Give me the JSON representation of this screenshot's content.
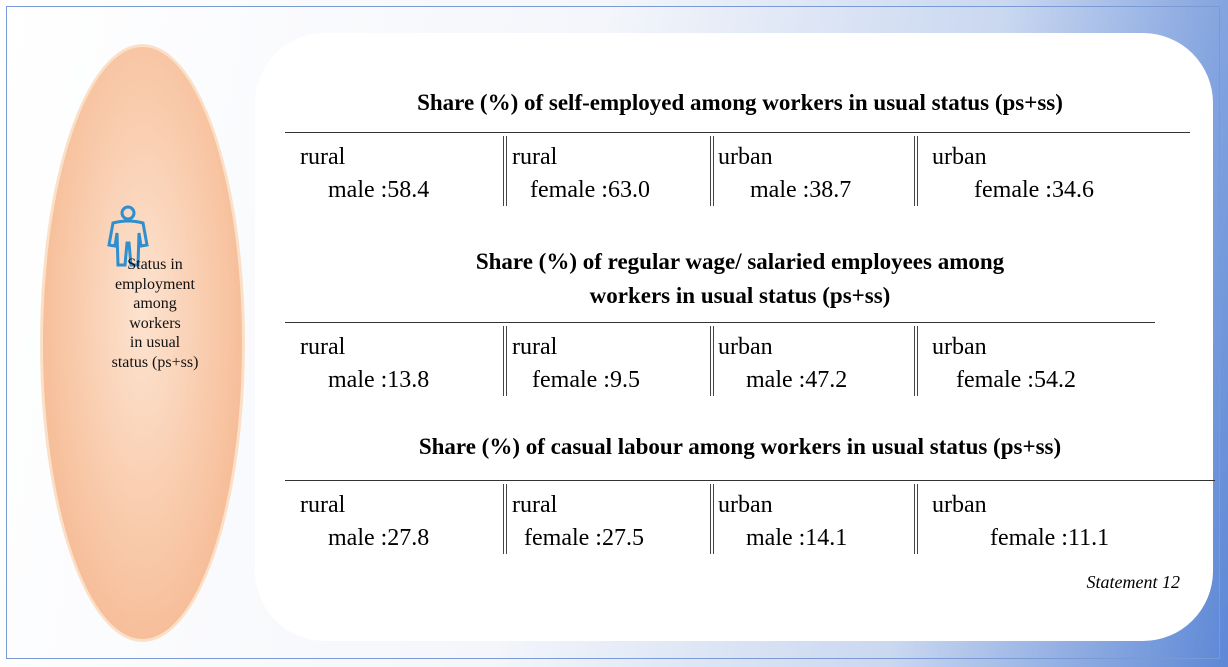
{
  "sidebar": {
    "lines": [
      "Status in",
      "employment",
      "among",
      "workers",
      "in usual",
      "status (ps+ss)"
    ]
  },
  "sections": [
    {
      "title_lines": [
        "Share (%) of self-employed among workers in usual status (ps+ss)"
      ],
      "cells": [
        {
          "line1": "rural",
          "line2": "male :58.4"
        },
        {
          "line1": "rural",
          "line2": "female :63.0"
        },
        {
          "line1": "urban",
          "line2": "male :38.7"
        },
        {
          "line1": "urban",
          "line2": "female :34.6"
        }
      ]
    },
    {
      "title_lines": [
        "Share (%) of regular wage/ salaried employees among",
        "workers in usual status (ps+ss)"
      ],
      "cells": [
        {
          "line1": "rural",
          "line2": "male :13.8"
        },
        {
          "line1": "rural",
          "line2": "female :9.5"
        },
        {
          "line1": "urban",
          "line2": "male :47.2"
        },
        {
          "line1": "urban",
          "line2": "female :54.2"
        }
      ]
    },
    {
      "title_lines": [
        "Share (%) of casual labour among workers in usual status (ps+ss)"
      ],
      "cells": [
        {
          "line1": "rural",
          "line2": "male :27.8"
        },
        {
          "line1": "rural",
          "line2": "female :27.5"
        },
        {
          "line1": "urban",
          "line2": "male :14.1"
        },
        {
          "line1": "urban",
          "line2": "female :11.1"
        }
      ]
    }
  ],
  "footer": "Statement 12"
}
